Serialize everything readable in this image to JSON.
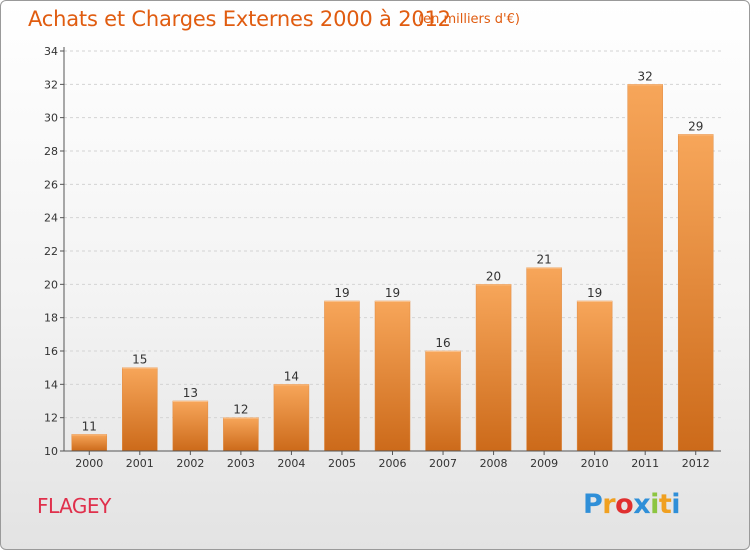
{
  "header": {
    "title": "Achats et Charges Externes 2000 à 2012",
    "subtitle": "(en milliers d'€)"
  },
  "footer": {
    "town": "FLAGEY",
    "logo": {
      "letters": [
        "P",
        "r",
        "o",
        "x",
        "i",
        "t",
        "i"
      ],
      "colors": [
        "#2f8fd8",
        "#f0a020",
        "#e03030",
        "#2f8fd8",
        "#8cc540",
        "#f0a020",
        "#2f8fd8"
      ]
    }
  },
  "colors": {
    "bar_light": "#f7a65a",
    "bar_dark": "#cc6a1a",
    "title": "#e05c10"
  },
  "chart_data": {
    "type": "bar",
    "categories": [
      "2000",
      "2001",
      "2002",
      "2003",
      "2004",
      "2005",
      "2006",
      "2007",
      "2008",
      "2009",
      "2010",
      "2011",
      "2012"
    ],
    "values": [
      11,
      15,
      13,
      12,
      14,
      19,
      19,
      16,
      20,
      21,
      19,
      32,
      29
    ],
    "data_labels": [
      "11",
      "15",
      "13",
      "12",
      "14",
      "19",
      "19",
      "16",
      "20",
      "21",
      "19",
      "32",
      "29"
    ],
    "ylim": [
      10,
      34
    ],
    "yticks": [
      10,
      12,
      14,
      16,
      18,
      20,
      22,
      24,
      26,
      28,
      30,
      32,
      34
    ],
    "grid": true,
    "legend": "none"
  }
}
